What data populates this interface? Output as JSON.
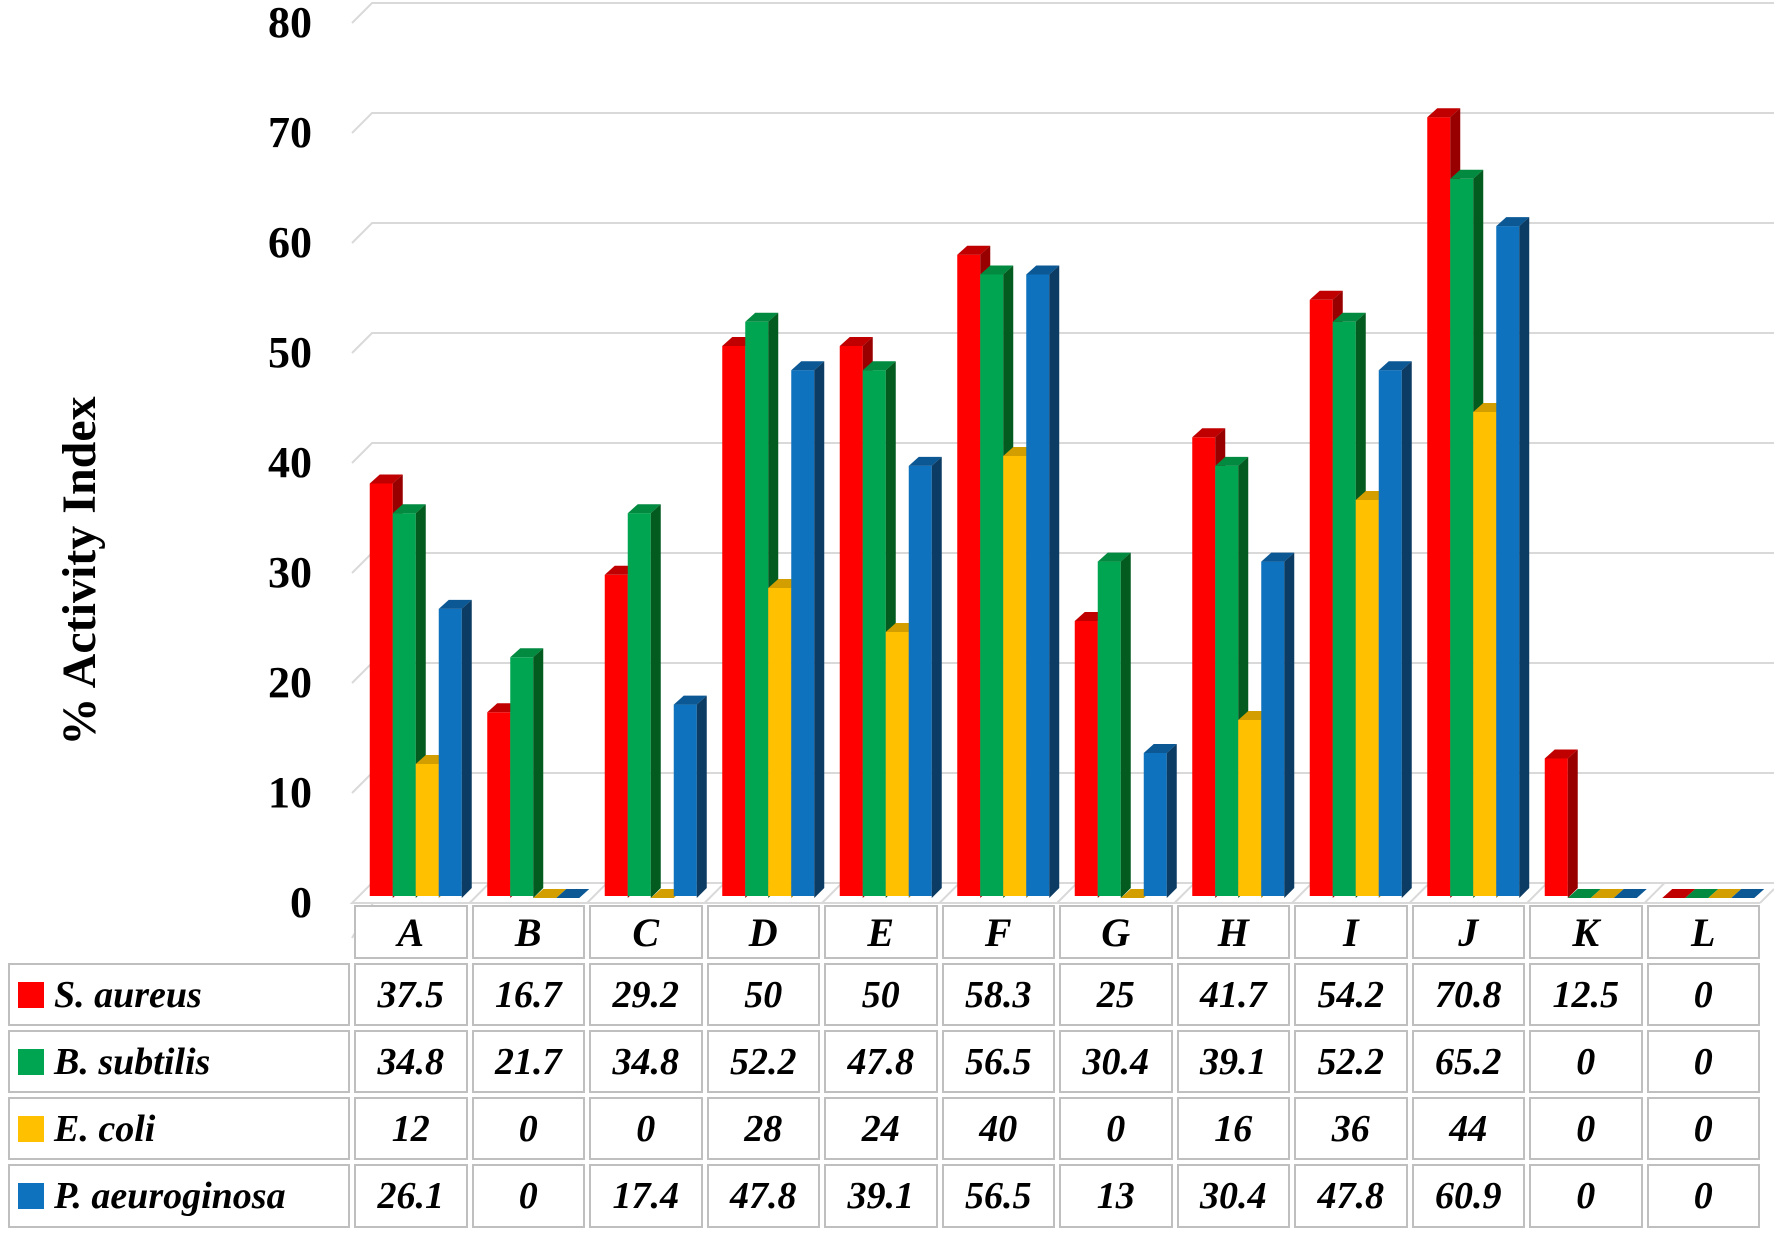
{
  "chart_data": {
    "type": "bar",
    "variant": "3d-clustered-column",
    "title": "",
    "xlabel": "",
    "ylabel": "% Activity Index",
    "categories": [
      "A",
      "B",
      "C",
      "D",
      "E",
      "F",
      "G",
      "H",
      "I",
      "J",
      "K",
      "L"
    ],
    "series": [
      {
        "name": "S. aureus",
        "color": "#FE0000",
        "top_color": "#C00000",
        "side_color": "#980000",
        "values": [
          37.5,
          16.7,
          29.2,
          50,
          50,
          58.3,
          25,
          41.7,
          54.2,
          70.8,
          12.5,
          0
        ]
      },
      {
        "name": "B. subtilis",
        "color": "#00A551",
        "top_color": "#028A40",
        "side_color": "#035B20",
        "values": [
          34.8,
          21.7,
          34.8,
          52.2,
          47.8,
          56.5,
          30.4,
          39.1,
          52.2,
          65.2,
          0,
          0
        ]
      },
      {
        "name": "E. coli",
        "color": "#FFC000",
        "top_color": "#D39E00",
        "side_color": "#A87E00",
        "values": [
          12,
          0,
          0,
          28,
          24,
          40,
          0,
          16,
          36,
          44,
          0,
          0
        ]
      },
      {
        "name": "P. aeuroginosa",
        "color": "#0E72BE",
        "top_color": "#0B5895",
        "side_color": "#0C3C64",
        "values": [
          26.1,
          0,
          17.4,
          47.8,
          39.1,
          56.5,
          13,
          30.4,
          47.8,
          60.9,
          0,
          0
        ]
      }
    ],
    "y_axis": {
      "min": 0,
      "max": 80,
      "tick_step": 10,
      "ticks": [
        0,
        10,
        20,
        30,
        40,
        50,
        60,
        70,
        80
      ]
    },
    "grid": true,
    "legend_position": "table-left",
    "data_table_shown": true
  },
  "colors": {
    "background": "#FFFFFF",
    "gridline": "#D9D9D9",
    "table_border": "#BFBFBF",
    "text": "#000000"
  }
}
